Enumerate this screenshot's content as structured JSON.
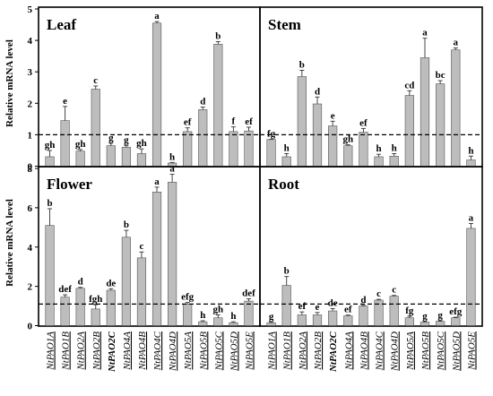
{
  "chart_data": [
    {
      "type": "bar",
      "title": "Leaf",
      "ylabel": "Relative mRNA level",
      "ylim": [
        0,
        5
      ],
      "yticks": [
        0,
        1,
        2,
        3,
        4,
        5
      ],
      "reference_line": 1,
      "categories": [
        "NtPAO1A",
        "NtPAO1B",
        "NtPAO2A",
        "NtPAO2B",
        "NtPAO2C",
        "NtPAO4A",
        "NtPAO4B",
        "NtPAO4C",
        "NtPAO4D",
        "NtPAO5A",
        "NtPAO5B",
        "NtPAO5C",
        "NtPAO5D",
        "NtPAO5E"
      ],
      "values": [
        0.3,
        1.45,
        0.48,
        2.45,
        0.65,
        0.6,
        0.4,
        4.55,
        0.1,
        1.1,
        1.8,
        3.88,
        1.1,
        1.12
      ],
      "errors": [
        0.2,
        0.45,
        0.05,
        0.1,
        0.08,
        0.05,
        0.15,
        0.05,
        0.02,
        0.12,
        0.08,
        0.08,
        0.15,
        0.12
      ],
      "labels": [
        "gh",
        "e",
        "gh",
        "c",
        "g",
        "g",
        "gh",
        "a",
        "h",
        "ef",
        "d",
        "b",
        "f",
        "ef"
      ]
    },
    {
      "type": "bar",
      "title": "Stem",
      "ylim": [
        0,
        5
      ],
      "yticks": [
        0,
        1,
        2,
        3,
        4,
        5
      ],
      "reference_line": 1,
      "categories": [
        "NtPAO1A",
        "NtPAO1B",
        "NtPAO2A",
        "NtPAO2B",
        "NtPAO2C",
        "NtPAO4A",
        "NtPAO4B",
        "NtPAO4C",
        "NtPAO4D",
        "NtPAO5A",
        "NtPAO5B",
        "NtPAO5C",
        "NtPAO5D",
        "NtPAO5E"
      ],
      "values": [
        0.85,
        0.3,
        2.85,
        1.98,
        1.28,
        0.65,
        1.08,
        0.3,
        0.32,
        2.25,
        3.45,
        2.62,
        3.7,
        0.2
      ],
      "errors": [
        0.0,
        0.1,
        0.2,
        0.22,
        0.15,
        0.03,
        0.12,
        0.08,
        0.08,
        0.15,
        0.62,
        0.1,
        0.06,
        0.12
      ],
      "labels": [
        "fg",
        "h",
        "b",
        "d",
        "e",
        "gh",
        "ef",
        "h",
        "h",
        "cd",
        "a",
        "bc",
        "a",
        "h"
      ]
    },
    {
      "type": "bar",
      "title": "Flower",
      "ylabel": "Relative mRNA level",
      "ylim": [
        0,
        8
      ],
      "yticks": [
        0,
        2,
        4,
        6,
        8
      ],
      "reference_line": 1.1,
      "categories": [
        "NtPAO1A",
        "NtPAO1B",
        "NtPAO2A",
        "NtPAO2B",
        "NtPAO2C",
        "NtPAO4A",
        "NtPAO4B",
        "NtPAO4C",
        "NtPAO4D",
        "NtPAO5A",
        "NtPAO5B",
        "NtPAO5C",
        "NtPAO5D",
        "NtPAO5E"
      ],
      "values": [
        5.1,
        1.45,
        1.9,
        0.85,
        1.8,
        4.5,
        3.45,
        6.8,
        7.3,
        1.1,
        0.2,
        0.4,
        0.15,
        1.25
      ],
      "errors": [
        0.85,
        0.12,
        0.05,
        0.22,
        0.08,
        0.35,
        0.3,
        0.25,
        0.4,
        0.08,
        0.05,
        0.15,
        0.05,
        0.12
      ],
      "labels": [
        "b",
        "def",
        "d",
        "fgh",
        "de",
        "b",
        "c",
        "a",
        "a",
        "efg",
        "h",
        "gh",
        "h",
        "def"
      ]
    },
    {
      "type": "bar",
      "title": "Root",
      "ylim": [
        0,
        8
      ],
      "yticks": [
        0,
        2,
        4,
        6,
        8
      ],
      "reference_line": 1.1,
      "categories": [
        "NtPAO1A",
        "NtPAO1B",
        "NtPAO2A",
        "NtPAO2B",
        "NtPAO2C",
        "NtPAO4A",
        "NtPAO4B",
        "NtPAO4C",
        "NtPAO4D",
        "NtPAO5A",
        "NtPAO5B",
        "NtPAO5C",
        "NtPAO5D",
        "NtPAO5E"
      ],
      "values": [
        0.15,
        2.05,
        0.55,
        0.55,
        0.75,
        0.5,
        1.0,
        1.3,
        1.5,
        0.4,
        0.18,
        0.22,
        0.4,
        4.95
      ],
      "errors": [
        0.04,
        0.45,
        0.15,
        0.12,
        0.12,
        0.04,
        0.03,
        0.04,
        0.04,
        0.08,
        0.03,
        0.03,
        0.03,
        0.25
      ],
      "labels": [
        "g",
        "b",
        "ef",
        "e",
        "de",
        "ef",
        "d",
        "c",
        "c",
        "fg",
        "g",
        "g",
        "efg",
        "a"
      ]
    }
  ],
  "x_axis": {
    "labels": [
      "NtPAO1A",
      "NtPAO1B",
      "NtPAO2A",
      "NtPAO2B",
      "NtPAO2C",
      "NtPAO4A",
      "NtPAO4B",
      "NtPAO4C",
      "NtPAO4D",
      "NtPAO5A",
      "NtPAO5B",
      "NtPAO5C",
      "NtPAO5D",
      "NtPAO5E"
    ],
    "underlined": [
      true,
      true,
      true,
      true,
      false,
      true,
      true,
      true,
      true,
      true,
      true,
      true,
      true,
      true
    ],
    "bold": [
      false,
      false,
      false,
      false,
      true,
      false,
      false,
      false,
      false,
      false,
      false,
      false,
      false,
      false
    ]
  },
  "colors": {
    "bar_fill": "#bdbdbd",
    "bar_stroke": "#555555",
    "frame": "#000000"
  }
}
